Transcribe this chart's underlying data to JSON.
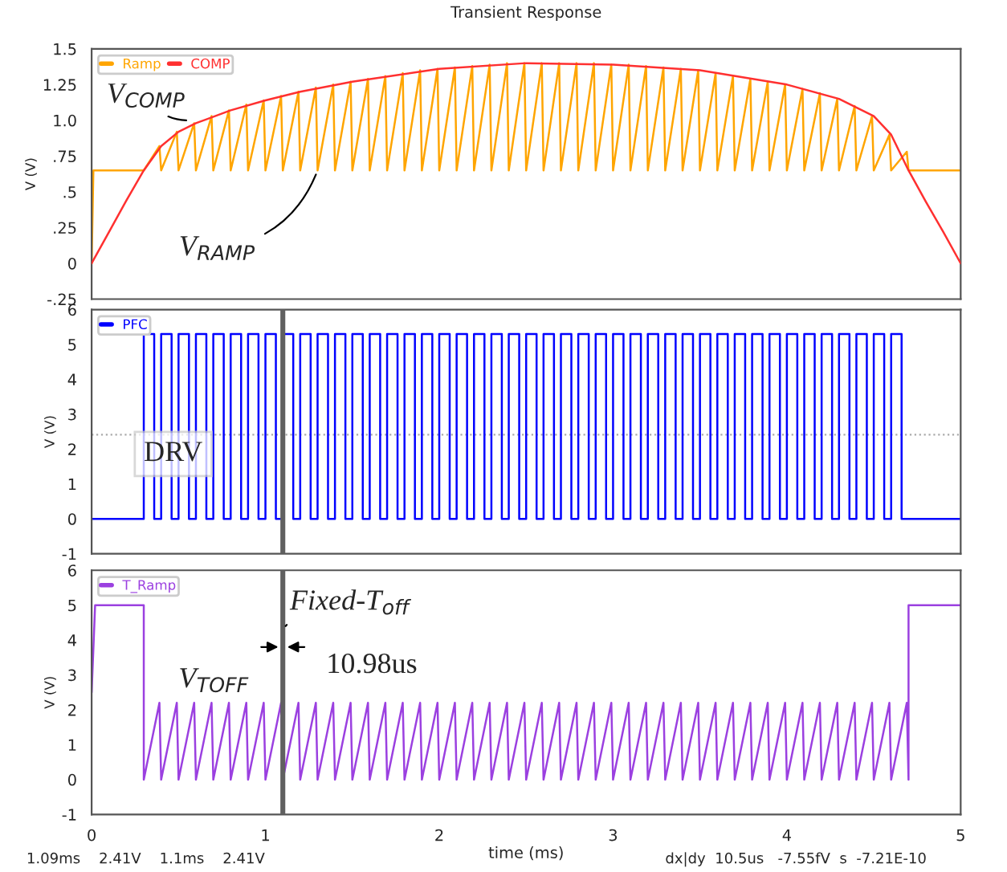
{
  "chart_data": [
    {
      "type": "line",
      "title": "Transient Response",
      "ylabel": "V (V)",
      "xlim": [
        0,
        5
      ],
      "xticks": [
        0,
        1,
        2,
        3,
        4,
        5
      ],
      "tick_labels": "y",
      "ylim": [
        -0.25,
        1.5
      ],
      "yticks": [
        {
          "value": -0.25,
          "label": "-.25"
        },
        0,
        {
          "value": 0.25,
          "label": ".25"
        },
        {
          "value": 0.5,
          "label": ".5"
        },
        {
          "value": 0.75,
          "label": ".75"
        },
        {
          "value": 1.0,
          "label": "1.0"
        },
        1.25,
        1.5
      ],
      "legend": "top left",
      "series": [
        {
          "name": "Ramp",
          "color": "#ffa500",
          "x": [
            0,
            0.01,
            0.3,
            0.39,
            0.4,
            0.49,
            0.5,
            0.59,
            0.6,
            0.69,
            0.7,
            0.79,
            0.8,
            0.89,
            0.9,
            0.99,
            1.0,
            1.09,
            1.1,
            1.19,
            1.2,
            1.29,
            1.3,
            1.39,
            1.4,
            1.49,
            1.5,
            1.59,
            1.6,
            1.69,
            1.7,
            1.79,
            1.8,
            1.89,
            1.9,
            1.99,
            2.0,
            2.09,
            2.1,
            2.19,
            2.2,
            2.29,
            2.3,
            2.39,
            2.4,
            2.49,
            2.5,
            2.59,
            2.6,
            2.69,
            2.7,
            2.79,
            2.8,
            2.89,
            2.9,
            2.99,
            3.0,
            3.09,
            3.1,
            3.19,
            3.2,
            3.29,
            3.3,
            3.39,
            3.4,
            3.49,
            3.5,
            3.59,
            3.6,
            3.69,
            3.7,
            3.79,
            3.8,
            3.89,
            3.9,
            3.99,
            4.0,
            4.09,
            4.1,
            4.19,
            4.2,
            4.29,
            4.3,
            4.39,
            4.4,
            4.49,
            4.5,
            4.59,
            4.6,
            4.69,
            4.7,
            5
          ],
          "values": [
            0,
            0.65,
            0.65,
            0.82,
            0.65,
            0.92,
            0.65,
            0.98,
            0.65,
            1.03,
            0.65,
            1.07,
            0.65,
            1.11,
            0.65,
            1.14,
            0.65,
            1.17,
            0.65,
            1.2,
            0.65,
            1.23,
            0.65,
            1.25,
            0.65,
            1.27,
            0.65,
            1.29,
            0.65,
            1.31,
            0.65,
            1.33,
            0.65,
            1.35,
            0.65,
            1.36,
            0.65,
            1.37,
            0.65,
            1.38,
            0.65,
            1.39,
            0.65,
            1.4,
            0.65,
            1.4,
            0.65,
            1.4,
            0.65,
            1.4,
            0.65,
            1.4,
            0.65,
            1.4,
            0.65,
            1.39,
            0.65,
            1.39,
            0.65,
            1.38,
            0.65,
            1.37,
            0.65,
            1.36,
            0.65,
            1.35,
            0.65,
            1.33,
            0.65,
            1.31,
            0.65,
            1.29,
            0.65,
            1.27,
            0.65,
            1.25,
            0.65,
            1.22,
            0.65,
            1.19,
            0.65,
            1.15,
            0.65,
            1.1,
            0.65,
            1.03,
            0.65,
            0.9,
            0.65,
            0.78,
            0.65,
            0.65
          ]
        },
        {
          "name": "COMP",
          "color": "#ff3030",
          "x": [
            0,
            0.1,
            0.2,
            0.3,
            0.4,
            0.5,
            0.6,
            0.8,
            1.0,
            1.2,
            1.5,
            2.0,
            2.5,
            3.0,
            3.5,
            4.0,
            4.3,
            4.5,
            4.6,
            4.7,
            4.8,
            4.9,
            5.0
          ],
          "values": [
            0,
            0.22,
            0.44,
            0.65,
            0.82,
            0.92,
            0.98,
            1.07,
            1.14,
            1.2,
            1.27,
            1.36,
            1.4,
            1.39,
            1.35,
            1.25,
            1.15,
            1.03,
            0.9,
            0.65,
            0.43,
            0.22,
            0
          ]
        }
      ],
      "annotations": [
        {
          "text": "V$_{COMP}$",
          "x": 0.57,
          "y": 1.0
        },
        {
          "text": "V$_{RAMP}$",
          "x": 1.3,
          "y": 0.65
        }
      ]
    },
    {
      "type": "step",
      "ylabel": "V (V)",
      "xlim": [
        0,
        5
      ],
      "xticks": [
        0,
        1,
        2,
        3,
        4,
        5
      ],
      "tick_labels": "y",
      "ylim": [
        -1,
        6
      ],
      "yticks": [
        -1,
        0,
        1,
        2,
        3,
        4,
        5,
        6
      ],
      "legend": "top left",
      "series": [
        {
          "name": "PFC",
          "color": "#0000ff",
          "x": [
            0,
            0.3,
            0.36,
            0.4,
            0.46,
            0.5,
            0.56,
            0.6,
            0.66,
            0.7,
            0.76,
            0.8,
            0.86,
            0.9,
            0.96,
            1.0,
            1.06,
            1.1,
            1.16,
            1.2,
            1.26,
            1.3,
            1.36,
            1.4,
            1.46,
            1.5,
            1.56,
            1.6,
            1.66,
            1.7,
            1.76,
            1.8,
            1.86,
            1.9,
            1.96,
            2.0,
            2.06,
            2.1,
            2.16,
            2.2,
            2.26,
            2.3,
            2.36,
            2.4,
            2.46,
            2.5,
            2.56,
            2.6,
            2.66,
            2.7,
            2.76,
            2.8,
            2.86,
            2.9,
            2.96,
            3.0,
            3.06,
            3.1,
            3.16,
            3.2,
            3.26,
            3.3,
            3.36,
            3.4,
            3.46,
            3.5,
            3.56,
            3.6,
            3.66,
            3.7,
            3.76,
            3.8,
            3.86,
            3.9,
            3.96,
            4.0,
            4.06,
            4.1,
            4.16,
            4.2,
            4.26,
            4.3,
            4.36,
            4.4,
            4.46,
            4.5,
            4.56,
            4.6,
            4.66,
            5
          ],
          "values": [
            0,
            5.3,
            0,
            5.3,
            0,
            5.3,
            0,
            5.3,
            0,
            5.3,
            0,
            5.3,
            0,
            5.3,
            0,
            5.3,
            0,
            5.3,
            0,
            5.3,
            0,
            5.3,
            0,
            5.3,
            0,
            5.3,
            0,
            5.3,
            0,
            5.3,
            0,
            5.3,
            0,
            5.3,
            0,
            5.3,
            0,
            5.3,
            0,
            5.3,
            0,
            5.3,
            0,
            5.3,
            0,
            5.3,
            0,
            5.3,
            0,
            5.3,
            0,
            5.3,
            0,
            5.3,
            0,
            5.3,
            0,
            5.3,
            0,
            5.3,
            0,
            5.3,
            0,
            5.3,
            0,
            5.3,
            0,
            5.3,
            0,
            5.3,
            0,
            5.3,
            0,
            5.3,
            0,
            5.3,
            0,
            5.3,
            0,
            5.3,
            0,
            5.3,
            0,
            5.3,
            0,
            5.3,
            0,
            5.3,
            0,
            0
          ]
        }
      ],
      "ref_lines": [
        {
          "axis": "x",
          "value": 1.1,
          "color": "#606060"
        },
        {
          "axis": "y",
          "value": 2.41,
          "color": "#aaaaaa",
          "line_style": "dotted"
        }
      ],
      "annotations": [
        "DRV"
      ]
    },
    {
      "type": "line",
      "xlabel": "time (ms)",
      "ylabel": "V (V)",
      "xlim": [
        0,
        5
      ],
      "xticks": [
        0,
        1,
        2,
        3,
        4,
        5
      ],
      "ylim": [
        -1,
        6
      ],
      "yticks": [
        -1,
        0,
        1,
        2,
        3,
        4,
        5,
        6
      ],
      "legend": "top left",
      "series": [
        {
          "name": "T_Ramp",
          "color": "#9b40e0",
          "x": [
            0,
            0.02,
            0.3,
            0.3,
            0.39,
            0.4,
            0.49,
            0.5,
            0.59,
            0.6,
            0.69,
            0.7,
            0.79,
            0.8,
            0.89,
            0.9,
            0.99,
            1.0,
            1.09,
            1.1,
            1.19,
            1.2,
            1.29,
            1.3,
            1.39,
            1.4,
            1.49,
            1.5,
            1.59,
            1.6,
            1.69,
            1.7,
            1.79,
            1.8,
            1.89,
            1.9,
            1.99,
            2.0,
            2.09,
            2.1,
            2.19,
            2.2,
            2.29,
            2.3,
            2.39,
            2.4,
            2.49,
            2.5,
            2.59,
            2.6,
            2.69,
            2.7,
            2.79,
            2.8,
            2.89,
            2.9,
            2.99,
            3.0,
            3.09,
            3.1,
            3.19,
            3.2,
            3.29,
            3.3,
            3.39,
            3.4,
            3.49,
            3.5,
            3.59,
            3.6,
            3.69,
            3.7,
            3.79,
            3.8,
            3.89,
            3.9,
            3.99,
            4.0,
            4.09,
            4.1,
            4.19,
            4.2,
            4.29,
            4.3,
            4.39,
            4.4,
            4.49,
            4.5,
            4.59,
            4.6,
            4.69,
            4.7,
            4.7,
            5
          ],
          "values": [
            2.5,
            5,
            5,
            0,
            2.2,
            0,
            2.2,
            0,
            2.2,
            0,
            2.2,
            0,
            2.2,
            0,
            2.2,
            0,
            2.2,
            0,
            2.2,
            0,
            2.2,
            0,
            2.2,
            0,
            2.2,
            0,
            2.2,
            0,
            2.2,
            0,
            2.2,
            0,
            2.2,
            0,
            2.2,
            0,
            2.2,
            0,
            2.2,
            0,
            2.2,
            0,
            2.2,
            0,
            2.2,
            0,
            2.2,
            0,
            2.2,
            0,
            2.2,
            0,
            2.2,
            0,
            2.2,
            0,
            2.2,
            0,
            2.2,
            0,
            2.2,
            0,
            2.2,
            0,
            2.2,
            0,
            2.2,
            0,
            2.2,
            0,
            2.2,
            0,
            2.2,
            0,
            2.2,
            0,
            2.2,
            0,
            2.2,
            0,
            2.2,
            0,
            2.2,
            0,
            2.2,
            0,
            2.2,
            0,
            2.2,
            0,
            2.2,
            0,
            5,
            5
          ]
        }
      ],
      "ref_lines": [
        {
          "axis": "x",
          "value": 1.1,
          "color": "#606060"
        }
      ],
      "annotations": [
        {
          "text": "Fixed-T$_{off}$",
          "x": 1.1,
          "y": 4.3
        },
        "10.98us",
        "V$_{TOFF}$",
        "1.09ms    2.41V    1.1ms    2.41V",
        "dx|dy  10.5us   -7.55fV  s  -7.21E-10"
      ]
    }
  ]
}
